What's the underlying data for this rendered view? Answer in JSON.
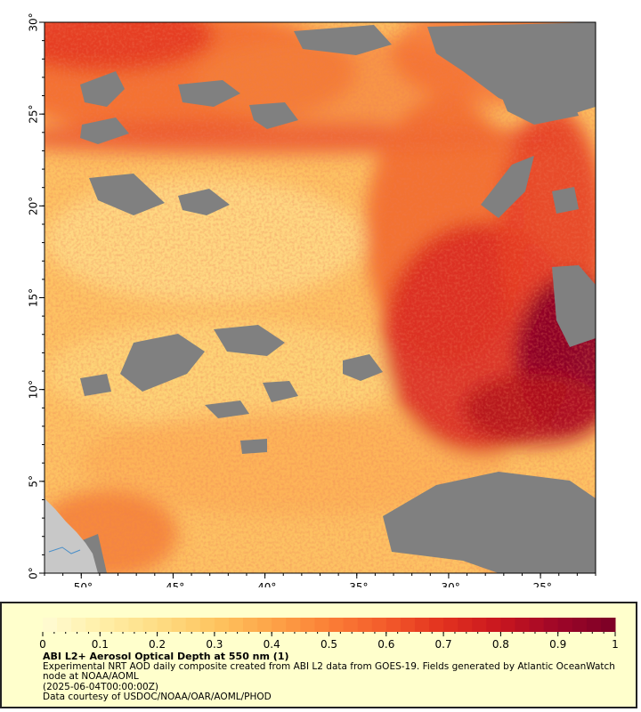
{
  "map": {
    "title": "",
    "lon_range": [
      -52,
      -22
    ],
    "lat_range": [
      0,
      30
    ],
    "x_ticks": [
      {
        "value": -50,
        "label": "-50°"
      },
      {
        "value": -45,
        "label": "-45°"
      },
      {
        "value": -40,
        "label": "-40°"
      },
      {
        "value": -35,
        "label": "-35°"
      },
      {
        "value": -30,
        "label": "-30°"
      },
      {
        "value": -25,
        "label": "-25°"
      }
    ],
    "y_ticks": [
      {
        "value": 0,
        "label": "0°"
      },
      {
        "value": 5,
        "label": "5°"
      },
      {
        "value": 10,
        "label": "10°"
      },
      {
        "value": 15,
        "label": "15°"
      },
      {
        "value": 20,
        "label": "20°"
      },
      {
        "value": 25,
        "label": "25°"
      },
      {
        "value": 30,
        "label": "30°"
      }
    ],
    "colors": {
      "land": "#c8c8c8",
      "nodata": "#808080",
      "ocean_base": "#fdc263"
    }
  },
  "colorbar": {
    "min": 0,
    "max": 1,
    "ticks": [
      "0",
      "0.1",
      "0.2",
      "0.3",
      "0.4",
      "0.5",
      "0.6",
      "0.7",
      "0.8",
      "0.9",
      "1"
    ],
    "colors": [
      "#fffcd4",
      "#ffefa8",
      "#fedd84",
      "#fec560",
      "#fda448",
      "#fb7f36",
      "#f35a2a",
      "#e2311f",
      "#c8161f",
      "#9e0628",
      "#7a0026"
    ]
  },
  "legend": {
    "title": "ABI L2+ Aerosol Optical Depth at 550 nm (1)",
    "line1": "Experimental NRT AOD daily composite created from ABI L2 data from GOES-19. Fields generated by Atlantic OceanWatch node at NOAA/AOML",
    "line2": "(2025-06-04T00:00:00Z)",
    "line3": "Data courtesy of USDOC/NOAA/OAR/AOML/PHOD"
  }
}
